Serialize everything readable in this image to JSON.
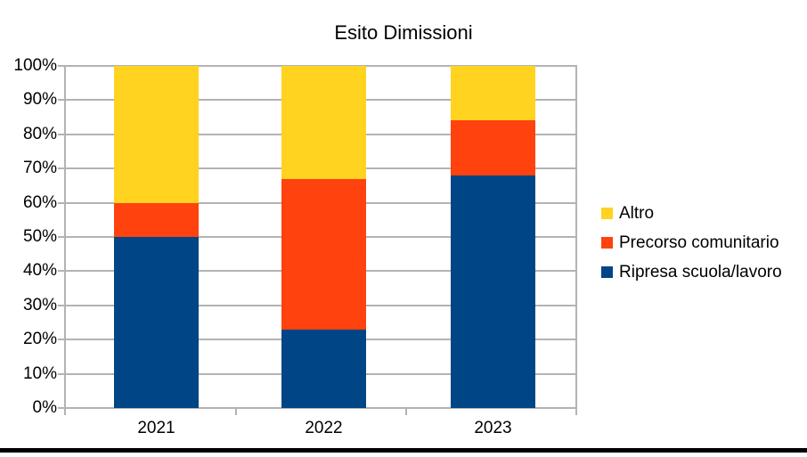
{
  "chart_data": {
    "type": "bar",
    "stacked": true,
    "percent_stacked": true,
    "title": "Esito Dimissioni",
    "categories": [
      "2021",
      "2022",
      "2023"
    ],
    "series": [
      {
        "name": "Ripresa scuola/lavoro",
        "color": "#004586",
        "values": [
          50,
          23,
          68
        ]
      },
      {
        "name": "Precorso comunitario",
        "color": "#FF420E",
        "values": [
          10,
          44,
          16
        ]
      },
      {
        "name": "Altro",
        "color": "#FFD320",
        "values": [
          40,
          33,
          16
        ]
      }
    ],
    "y_ticks": [
      "0%",
      "10%",
      "20%",
      "30%",
      "40%",
      "50%",
      "60%",
      "70%",
      "80%",
      "90%",
      "100%"
    ],
    "ylim": [
      0,
      100
    ],
    "xlabel": "",
    "ylabel": "",
    "grid": true,
    "gridline_color": "#b3b3b3",
    "legend_position": "right",
    "legend_order_top_to_bottom": [
      "Altro",
      "Precorso comunitario",
      "Ripresa scuola/lavoro"
    ],
    "background_color": "#ffffff",
    "text_color": "#000000",
    "bottom_rule_color": "#000000"
  }
}
